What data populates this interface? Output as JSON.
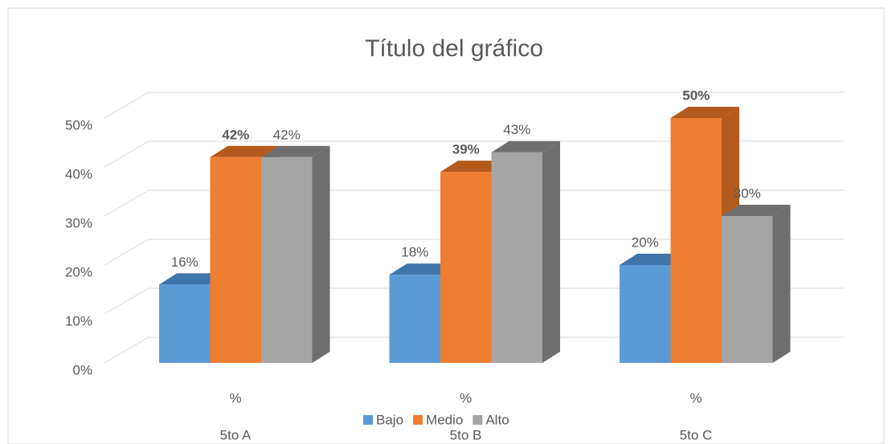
{
  "chart_data": {
    "type": "bar3d",
    "title": "Título del gráfico",
    "categories": [
      "5to A",
      "5to B",
      "5to C"
    ],
    "subcategories": [
      "%",
      "%",
      "%"
    ],
    "series": [
      {
        "name": "Bajo",
        "color": "#5b9bd5",
        "side_color": "#3f75a8",
        "values": [
          16,
          18,
          20
        ],
        "value_labels": [
          "16%",
          "18%",
          "20%"
        ],
        "label_bold": false
      },
      {
        "name": "Medio",
        "color": "#ed7d31",
        "side_color": "#b45a1c",
        "values": [
          42,
          39,
          50
        ],
        "value_labels": [
          "42%",
          "39%",
          "50%"
        ],
        "label_bold": true
      },
      {
        "name": "Alto",
        "color": "#a5a5a5",
        "side_color": "#6e6e6e",
        "values": [
          42,
          43,
          30
        ],
        "value_labels": [
          "42%",
          "43%",
          "30%"
        ],
        "label_bold": false
      }
    ],
    "ylim": [
      0,
      50
    ],
    "yticks": [
      {
        "value": 0,
        "label": "0%"
      },
      {
        "value": 10,
        "label": "10%"
      },
      {
        "value": 20,
        "label": "20%"
      },
      {
        "value": 30,
        "label": "30%"
      },
      {
        "value": 40,
        "label": "40%"
      },
      {
        "value": 50,
        "label": "50%"
      }
    ],
    "grid": true,
    "legend": "bottom"
  }
}
